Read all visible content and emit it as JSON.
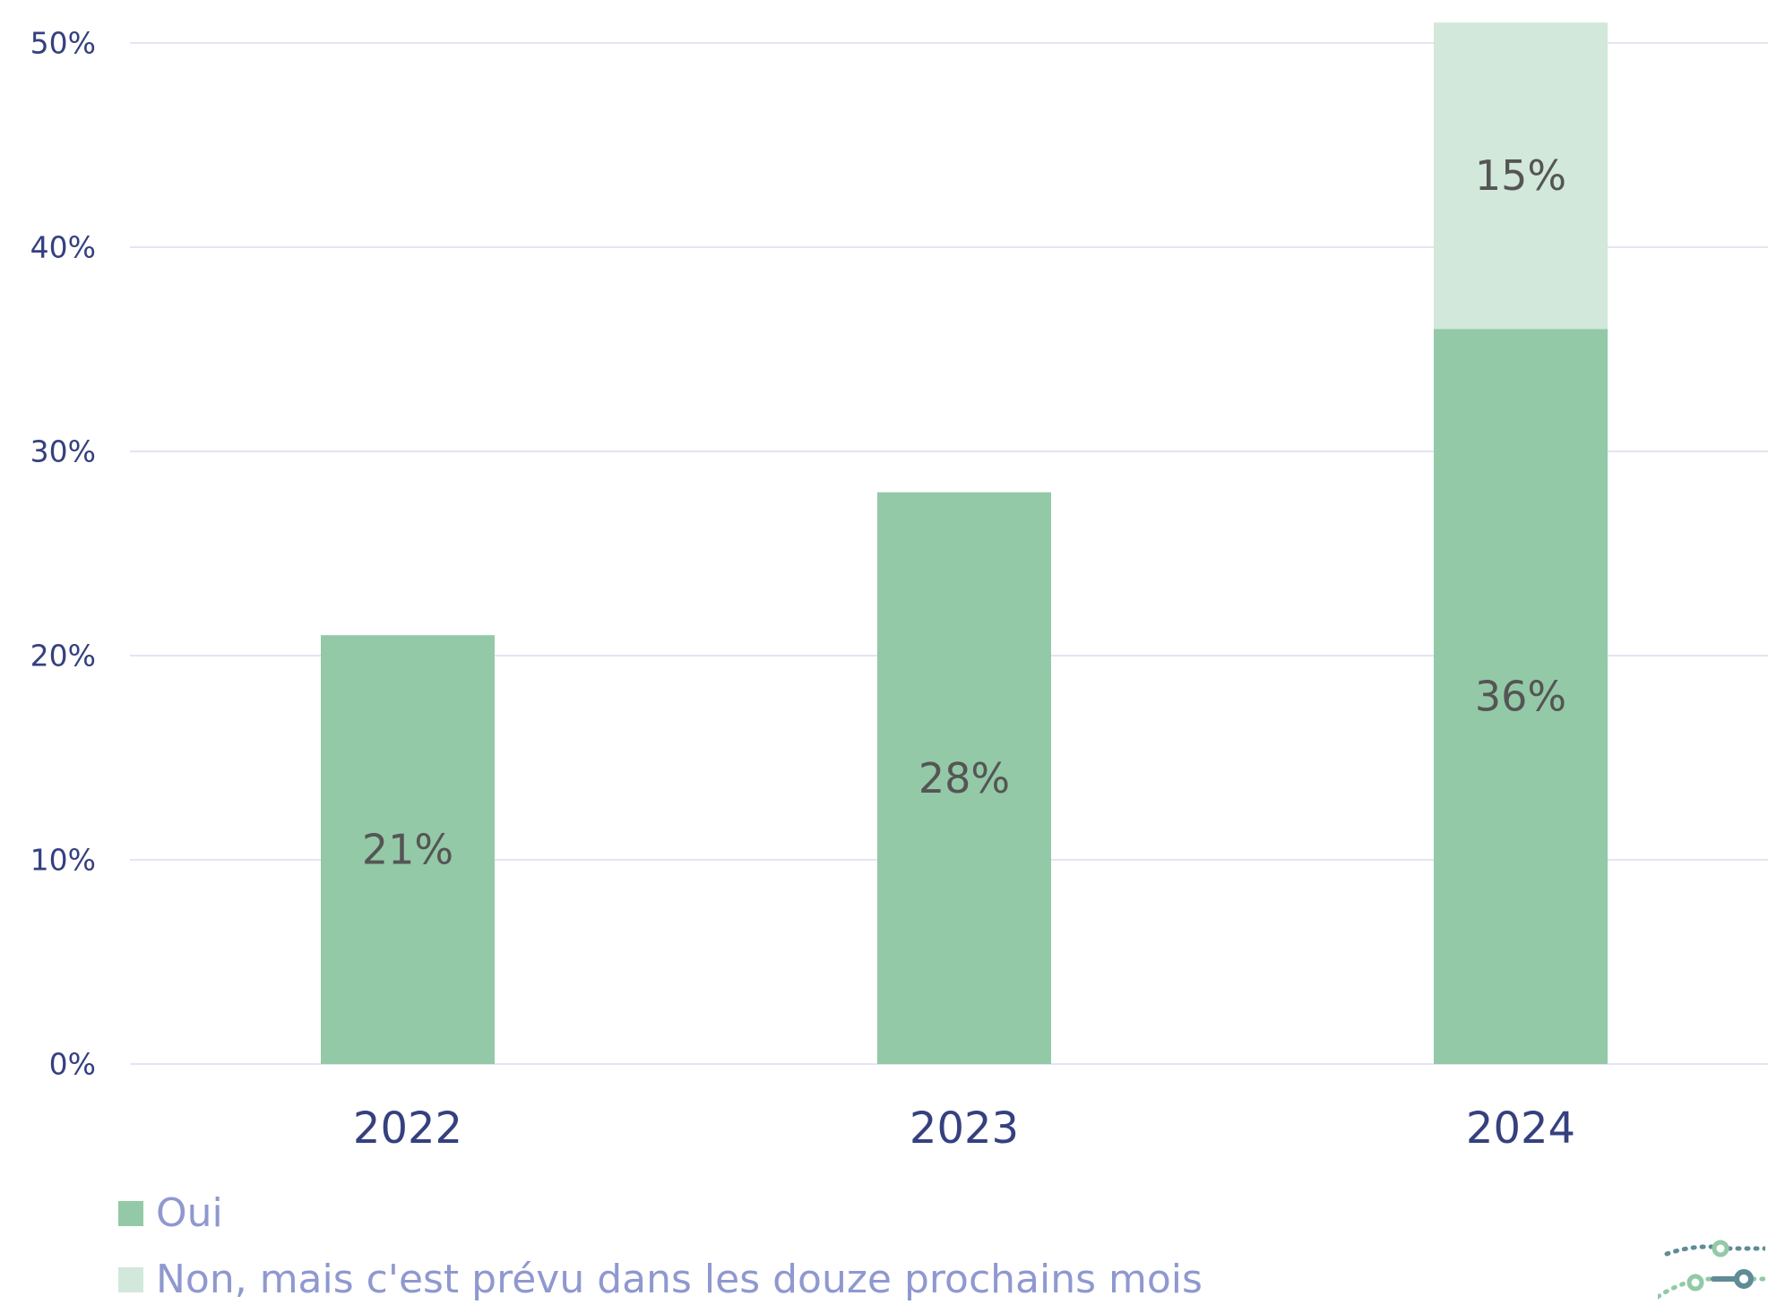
{
  "chart_data": {
    "type": "bar",
    "stacked": true,
    "categories": [
      "2022",
      "2023",
      "2024"
    ],
    "series": [
      {
        "name": "Oui",
        "values": [
          21,
          28,
          36
        ],
        "labels": [
          "21%",
          "28%",
          "36%"
        ],
        "color": "#93c9a7"
      },
      {
        "name": "Non, mais c'est prévu dans les douze prochains mois",
        "values": [
          null,
          null,
          15
        ],
        "labels": [
          "",
          "",
          "15%"
        ],
        "color": "#d2e8da"
      }
    ],
    "ylim": [
      0,
      50
    ],
    "yticks": [
      0,
      10,
      20,
      30,
      40,
      50
    ],
    "ytick_labels": [
      "0%",
      "10%",
      "20%",
      "30%",
      "40%",
      "50%"
    ],
    "grid": true,
    "legend_position": "bottom-left",
    "colors": {
      "axis_text": "#35407f",
      "data_label": "#555555",
      "gridline": "#e3e5f3",
      "legend_text": "#8f98cf"
    }
  },
  "logo": {
    "name": "network-logo-icon",
    "colors": [
      "#93c9a7",
      "#5f8c96",
      "#35407f"
    ]
  }
}
